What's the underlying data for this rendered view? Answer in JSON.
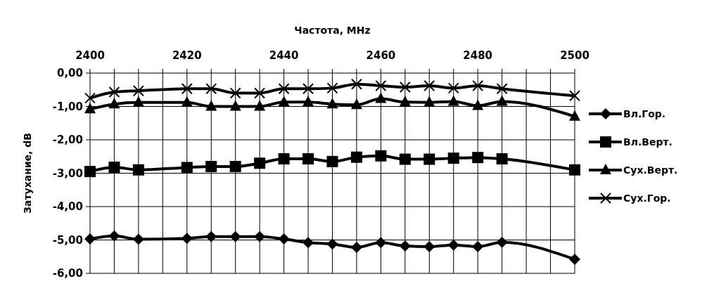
{
  "chart_data": {
    "type": "line",
    "xlabel": "Частота, MHz",
    "ylabel": "Затухание, dB",
    "x": [
      2400,
      2405,
      2410,
      2420,
      2425,
      2430,
      2435,
      2440,
      2445,
      2450,
      2455,
      2460,
      2465,
      2470,
      2475,
      2480,
      2485,
      2500
    ],
    "xlim": [
      2400,
      2500
    ],
    "xticks": [
      2400,
      {
        "value": 2405,
        "label": null
      },
      {
        "value": 2410,
        "label": null
      },
      {
        "value": 2415,
        "label": null
      },
      2420,
      {
        "value": 2425,
        "label": null
      },
      {
        "value": 2430,
        "label": null
      },
      {
        "value": 2435,
        "label": null
      },
      2440,
      {
        "value": 2445,
        "label": null
      },
      {
        "value": 2450,
        "label": null
      },
      {
        "value": 2455,
        "label": null
      },
      2460,
      {
        "value": 2465,
        "label": null
      },
      {
        "value": 2470,
        "label": null
      },
      {
        "value": 2475,
        "label": null
      },
      2480,
      {
        "value": 2485,
        "label": null
      },
      {
        "value": 2490,
        "label": null
      },
      {
        "value": 2495,
        "label": null
      },
      2500
    ],
    "ylim": [
      -6,
      0
    ],
    "yticks": [
      {
        "value": 0,
        "label": "0,00"
      },
      {
        "value": -1,
        "label": "-1,00"
      },
      {
        "value": -2,
        "label": "-2,00"
      },
      {
        "value": -3,
        "label": "-3,00"
      },
      {
        "value": -4,
        "label": "-4,00"
      },
      {
        "value": -5,
        "label": "-5,00"
      },
      {
        "value": -6,
        "label": "-6,00"
      }
    ],
    "grid": true,
    "legend": "right",
    "line_style": "solid",
    "series": [
      {
        "name": "Вл.Гор.",
        "color": "#000000",
        "marker": "diamond",
        "values": [
          -4.97,
          -4.88,
          -4.98,
          -4.95,
          -4.9,
          -4.9,
          -4.9,
          -4.97,
          -5.08,
          -5.12,
          -5.22,
          -5.08,
          -5.18,
          -5.2,
          -5.15,
          -5.2,
          -5.07,
          -5.58
        ]
      },
      {
        "name": "Вл.Верт.",
        "color": "#000000",
        "marker": "square",
        "values": [
          -2.95,
          -2.82,
          -2.9,
          -2.83,
          -2.8,
          -2.8,
          -2.7,
          -2.57,
          -2.57,
          -2.65,
          -2.52,
          -2.48,
          -2.58,
          -2.58,
          -2.55,
          -2.53,
          -2.57,
          -2.9
        ]
      },
      {
        "name": "Сух.Верт.",
        "color": "#000000",
        "marker": "triangle",
        "values": [
          -1.08,
          -0.93,
          -0.88,
          -0.88,
          -1.0,
          -1.0,
          -1.0,
          -0.87,
          -0.87,
          -0.93,
          -0.95,
          -0.77,
          -0.87,
          -0.88,
          -0.85,
          -0.98,
          -0.85,
          -1.3
        ]
      },
      {
        "name": "Сух.Гор.",
        "color": "#000000",
        "marker": "cross",
        "values": [
          -0.75,
          -0.57,
          -0.53,
          -0.47,
          -0.47,
          -0.6,
          -0.6,
          -0.47,
          -0.47,
          -0.45,
          -0.33,
          -0.38,
          -0.42,
          -0.38,
          -0.45,
          -0.38,
          -0.47,
          -0.68
        ]
      }
    ]
  }
}
